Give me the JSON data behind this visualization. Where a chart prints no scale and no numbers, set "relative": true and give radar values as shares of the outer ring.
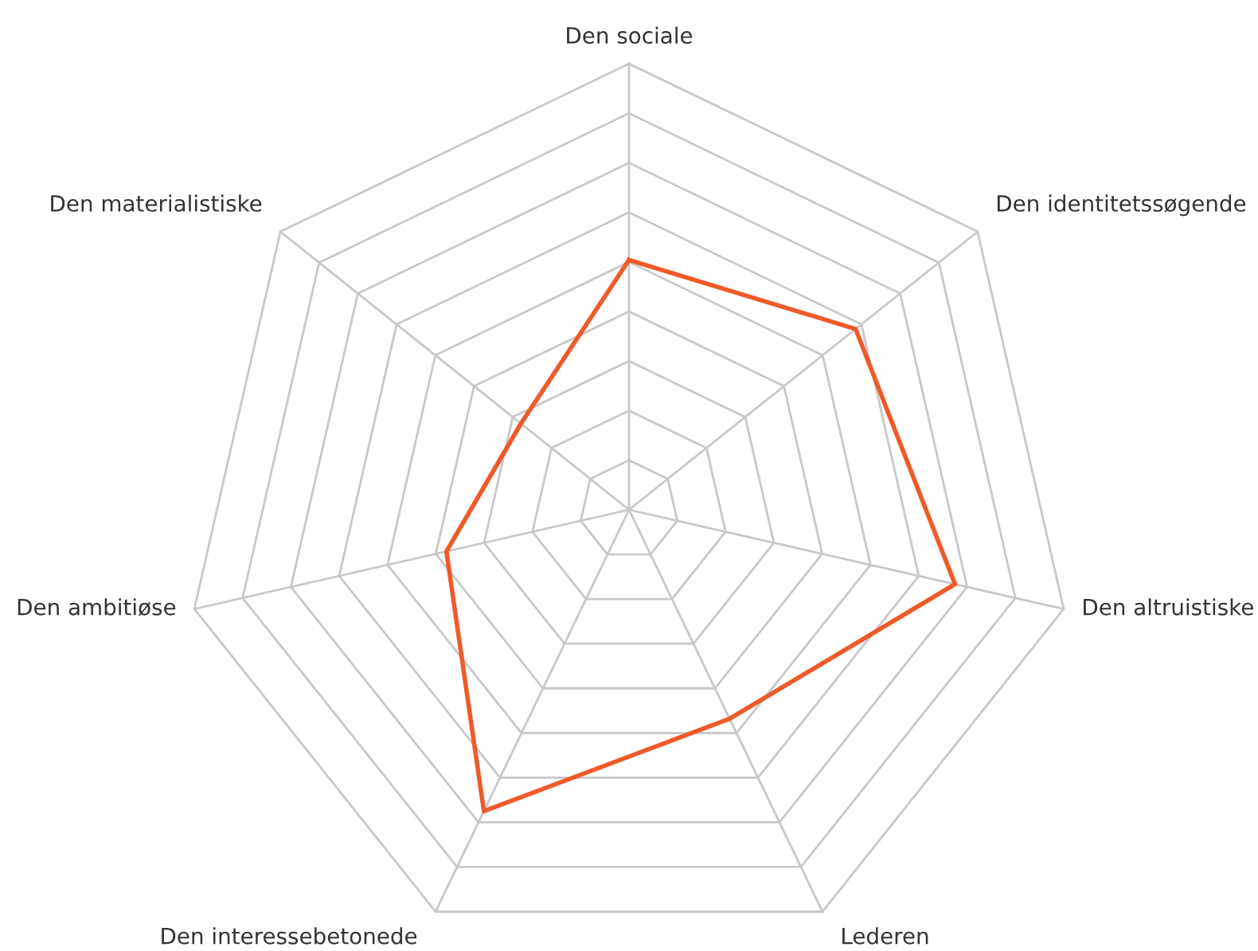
{
  "chart_data": {
    "type": "radar",
    "relative": true,
    "grid": true,
    "categories": [
      "Den sociale",
      "Den identitetssøgende",
      "Den altruistiske",
      "Lederen",
      "Den interessebetonede",
      "Den ambitiøse",
      "Den materialistiske"
    ],
    "series": [
      {
        "color": "#f05a28",
        "values": [
          0.56,
          0.65,
          0.75,
          0.52,
          0.75,
          0.42,
          0.31
        ]
      }
    ]
  }
}
